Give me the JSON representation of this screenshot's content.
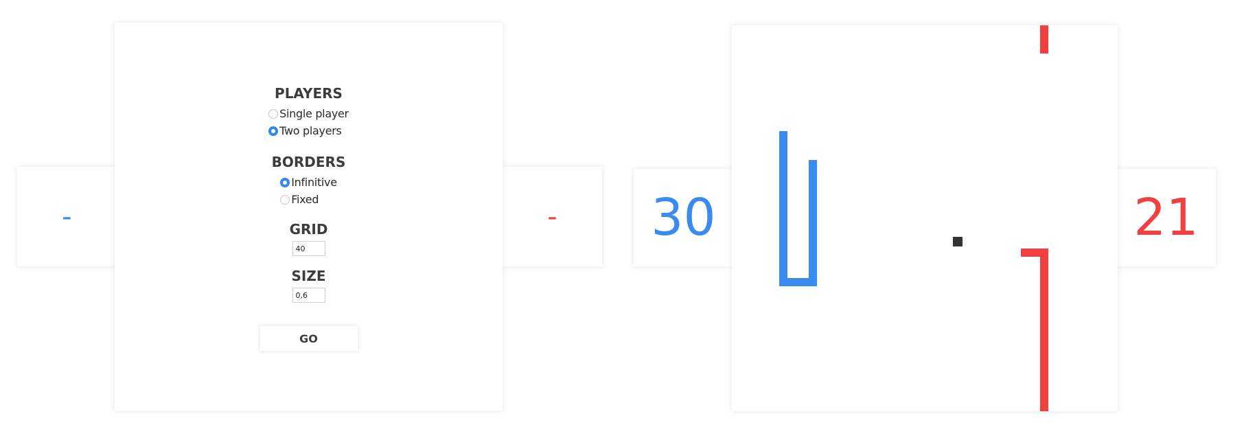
{
  "menu_screen": {
    "player1_score": "-",
    "player2_score": "-",
    "players": {
      "title": "PLAYERS",
      "options": [
        {
          "label": "Single player",
          "checked": false
        },
        {
          "label": "Two players",
          "checked": true
        }
      ]
    },
    "borders": {
      "title": "BORDERS",
      "options": [
        {
          "label": "Infinitive",
          "checked": true
        },
        {
          "label": "Fixed",
          "checked": false
        }
      ]
    },
    "grid": {
      "title": "GRID",
      "value": "40"
    },
    "size": {
      "title": "SIZE",
      "value": "0,6"
    },
    "go_label": "GO"
  },
  "game_screen": {
    "player1_score": "30",
    "player2_score": "21"
  },
  "colors": {
    "player1": "#3a8bf0",
    "player2": "#f04040",
    "food": "#333333"
  }
}
